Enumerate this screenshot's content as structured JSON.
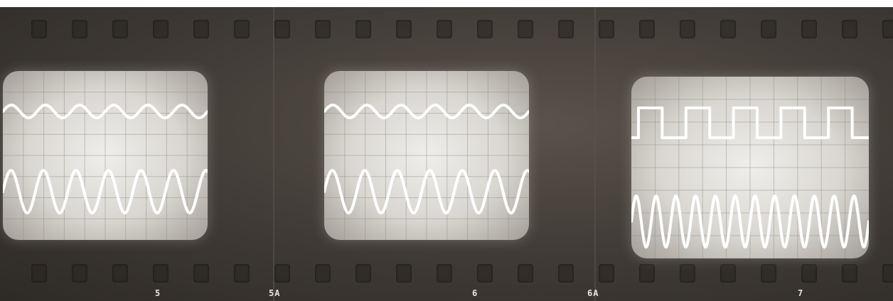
{
  "photo": {
    "subject": "oscilloscope-traces-film-strip",
    "frames": [
      {
        "id": "frame-5",
        "label": "5",
        "top_trace": "sine-small",
        "bottom_trace": "sine-large"
      },
      {
        "id": "frame-6",
        "label": "6",
        "top_trace": "sine-small",
        "bottom_trace": "sine-large"
      },
      {
        "id": "frame-7",
        "label": "7",
        "top_trace": "square",
        "bottom_trace": "sine-fast"
      }
    ],
    "intermediate_labels": [
      "5A",
      "6A"
    ],
    "colors": {
      "film": "#3f3a35",
      "screen": "#d9d6d0",
      "trace": "#ffffff",
      "grid": "#8e8a84"
    }
  }
}
